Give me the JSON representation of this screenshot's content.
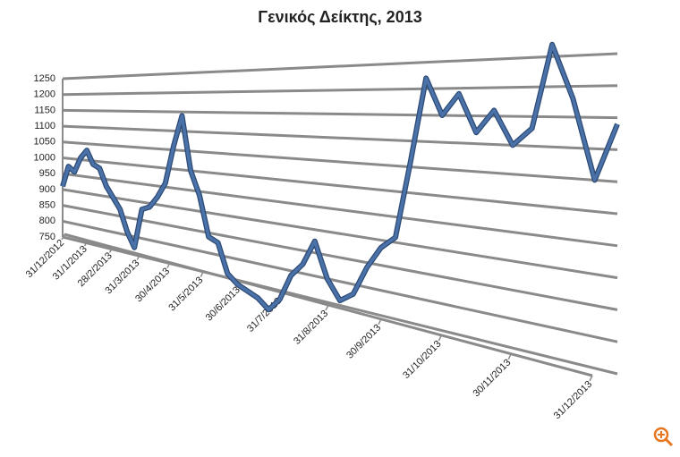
{
  "chart_data": {
    "type": "line3d",
    "title": "Γενικός Δείκτης, 2013",
    "categories": [
      "31/12/2012",
      null,
      null,
      null,
      "31/1/2013",
      null,
      null,
      null,
      "28/2/2013",
      null,
      null,
      null,
      "31/3/2013",
      null,
      null,
      null,
      "30/4/2013",
      null,
      null,
      null,
      "31/5/2013",
      null,
      null,
      null,
      "30/6/2013",
      null,
      null,
      null,
      "31/7/2013",
      null,
      null,
      null,
      "31/8/2013",
      null,
      null,
      null,
      "30/9/2013",
      null,
      null,
      null,
      "31/10/2013",
      null,
      null,
      null,
      "30/11/2013",
      null,
      null,
      null,
      "31/12/2013"
    ],
    "series": [
      {
        "name": "Γενικός Δείκτης",
        "color": "#4a72a8",
        "values": [
          910,
          975,
          960,
          1005,
          1030,
          990,
          980,
          930,
          900,
          870,
          810,
          770,
          880,
          890,
          920,
          960,
          1060,
          1140,
          1000,
          940,
          840,
          830,
          760,
          740,
          730,
          720,
          700,
          730,
          790,
          820,
          875,
          800,
          760,
          780,
          840,
          885,
          910,
          1060,
          1220,
          1150,
          1190,
          1120,
          1160,
          1100,
          1130,
          1270,
          1180,
          1050,
          1140
        ]
      }
    ],
    "ylim": [
      750,
      1250
    ],
    "yticks": [
      750,
      800,
      850,
      900,
      950,
      1000,
      1050,
      1100,
      1150,
      1200,
      1250
    ],
    "grid": true
  }
}
